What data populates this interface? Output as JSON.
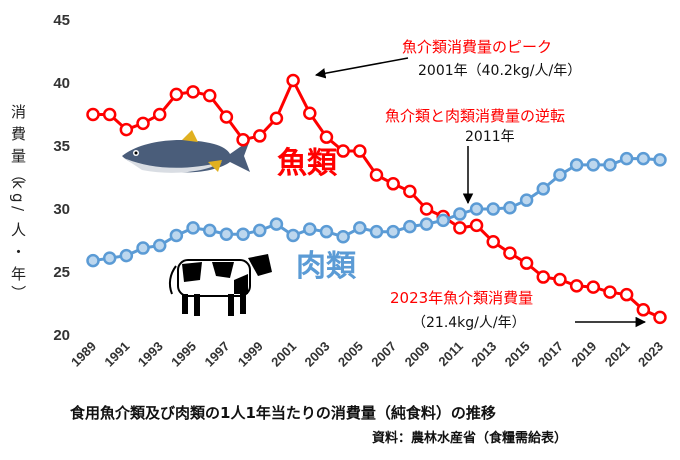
{
  "chart_data": {
    "type": "line",
    "x": [
      1989,
      1990,
      1991,
      1992,
      1993,
      1994,
      1995,
      1996,
      1997,
      1998,
      1999,
      2000,
      2001,
      2002,
      2003,
      2004,
      2005,
      2006,
      2007,
      2008,
      2009,
      2010,
      2011,
      2012,
      2013,
      2014,
      2015,
      2016,
      2017,
      2018,
      2019,
      2020,
      2021,
      2022,
      2023
    ],
    "x_tick_labels": [
      "1989",
      "1991",
      "1993",
      "1995",
      "1997",
      "1999",
      "2001",
      "2003",
      "2005",
      "2007",
      "2009",
      "2011",
      "2013",
      "2015",
      "2017",
      "2019",
      "2021",
      "2023"
    ],
    "ylim": [
      20,
      45
    ],
    "y_ticks": [
      20,
      25,
      30,
      35,
      40,
      45
    ],
    "ylabel": "消費量（kg/人・年）",
    "grid": false,
    "series": [
      {
        "name": "魚類",
        "color": "#ff0000",
        "values": [
          37.5,
          37.5,
          36.3,
          36.8,
          37.5,
          39.1,
          39.3,
          39.0,
          37.3,
          35.5,
          35.8,
          37.2,
          40.2,
          37.6,
          35.7,
          34.6,
          34.6,
          32.7,
          32.0,
          31.4,
          30.0,
          29.4,
          28.5,
          28.7,
          27.4,
          26.5,
          25.7,
          24.6,
          24.4,
          23.9,
          23.8,
          23.4,
          23.2,
          22.0,
          21.4
        ]
      },
      {
        "name": "肉類",
        "color": "#5b9bd5",
        "values": [
          25.9,
          26.1,
          26.3,
          26.9,
          27.1,
          27.9,
          28.5,
          28.3,
          28.0,
          28.0,
          28.3,
          28.8,
          27.9,
          28.4,
          28.2,
          27.8,
          28.5,
          28.2,
          28.2,
          28.6,
          28.8,
          29.1,
          29.6,
          30.0,
          30.0,
          30.1,
          30.7,
          31.6,
          32.7,
          33.5,
          33.5,
          33.5,
          34.0,
          34.0,
          33.9
        ]
      }
    ],
    "annotations": {
      "peak_title": "魚介類消費量のピーク",
      "peak_value": "2001年（40.2kg/人/年）",
      "cross_title": "魚介類と肉類消費量の逆転",
      "cross_year": "2011年",
      "latest_title": "2023年魚介類消費量",
      "latest_value": "（21.4kg/人/年）"
    },
    "series_labels": {
      "fish": "魚類",
      "meat": "肉類"
    },
    "caption": "食用魚介類及び肉類の1人1年当たりの消費量（純食料）の推移",
    "source": "資料：農林水産省（食糧需給表）"
  },
  "icons": [
    "tuna-fish-icon",
    "holstein-cow-icon"
  ],
  "colors": {
    "fish": "#ff0000",
    "meat": "#5b9bd5",
    "fish_marker_fill": "#ffffff",
    "meat_marker_fill": "#bdd7ee"
  }
}
